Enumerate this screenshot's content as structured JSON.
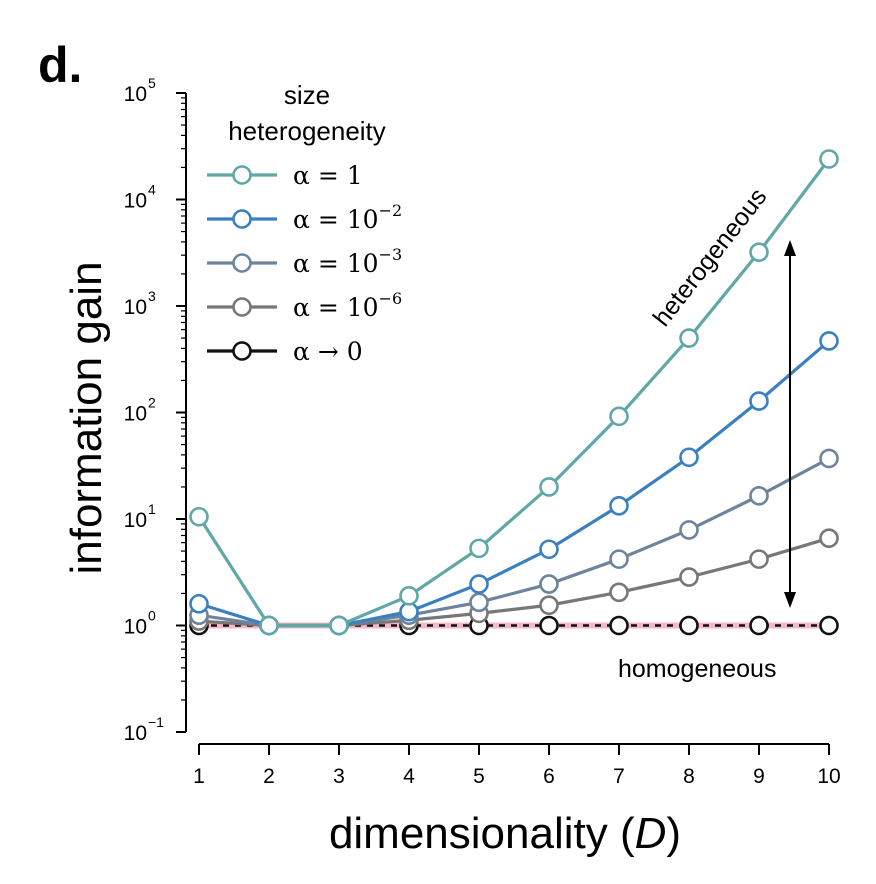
{
  "panel_label": "d.",
  "chart_data": {
    "type": "line",
    "title": "",
    "xlabel": "dimensionality (D)",
    "xlabel_main": "dimensionality (",
    "xlabel_var": "D",
    "xlabel_close": ")",
    "ylabel": "information gain",
    "yscale": "log",
    "ylim_exp": [
      -1,
      5
    ],
    "xlim": [
      1,
      10
    ],
    "x": [
      1,
      2,
      3,
      4,
      5,
      6,
      7,
      8,
      9,
      10
    ],
    "x_tick_labels": [
      "1",
      "2",
      "3",
      "4",
      "5",
      "6",
      "7",
      "8",
      "9",
      "10"
    ],
    "y_tick_base": "10",
    "y_tick_exponents": [
      "−1",
      "0",
      "1",
      "2",
      "3",
      "4",
      "5"
    ],
    "legend_title_line1": "size",
    "legend_title_line2": "heterogeneity",
    "legend_location": "upper-left",
    "series": [
      {
        "name": "α = 1",
        "label_main": "α = 1",
        "label_exp": "",
        "color": "#5fa8a6",
        "values": [
          10.5,
          1.0,
          1.0,
          1.9,
          5.3,
          20,
          92,
          500,
          3200,
          24000
        ]
      },
      {
        "name": "α = 10⁻²",
        "label_main": "α = 10",
        "label_exp": "−2",
        "color": "#3a7fc0",
        "values": [
          1.6,
          1.0,
          1.0,
          1.35,
          2.45,
          5.2,
          13.3,
          38,
          128,
          470
        ]
      },
      {
        "name": "α = 10⁻³",
        "label_main": "α = 10",
        "label_exp": "−3",
        "color": "#6d849c",
        "values": [
          1.25,
          1.0,
          1.0,
          1.25,
          1.65,
          2.45,
          4.2,
          7.9,
          16.5,
          37
        ]
      },
      {
        "name": "α = 10⁻⁶",
        "label_main": "α = 10",
        "label_exp": "−6",
        "color": "#777777",
        "values": [
          1.1,
          1.0,
          1.0,
          1.12,
          1.3,
          1.55,
          2.05,
          2.85,
          4.2,
          6.6
        ]
      },
      {
        "name": "α → 0",
        "label_main": "α → 0",
        "label_exp": "",
        "color": "#111111",
        "values": [
          1.0,
          1.0,
          1.0,
          1.0,
          1.0,
          1.0,
          1.0,
          1.0,
          1.0,
          1.0
        ]
      }
    ],
    "reference_line": {
      "y": 1,
      "color": "#f4b8c6",
      "style": "dashed black over pink"
    },
    "annotations": {
      "heterogeneous": "heterogeneous",
      "homogeneous": "homogeneous",
      "arrow": "double-headed vertical arrow near D = 9.4, spanning approx. 1.3 to 2500"
    }
  }
}
